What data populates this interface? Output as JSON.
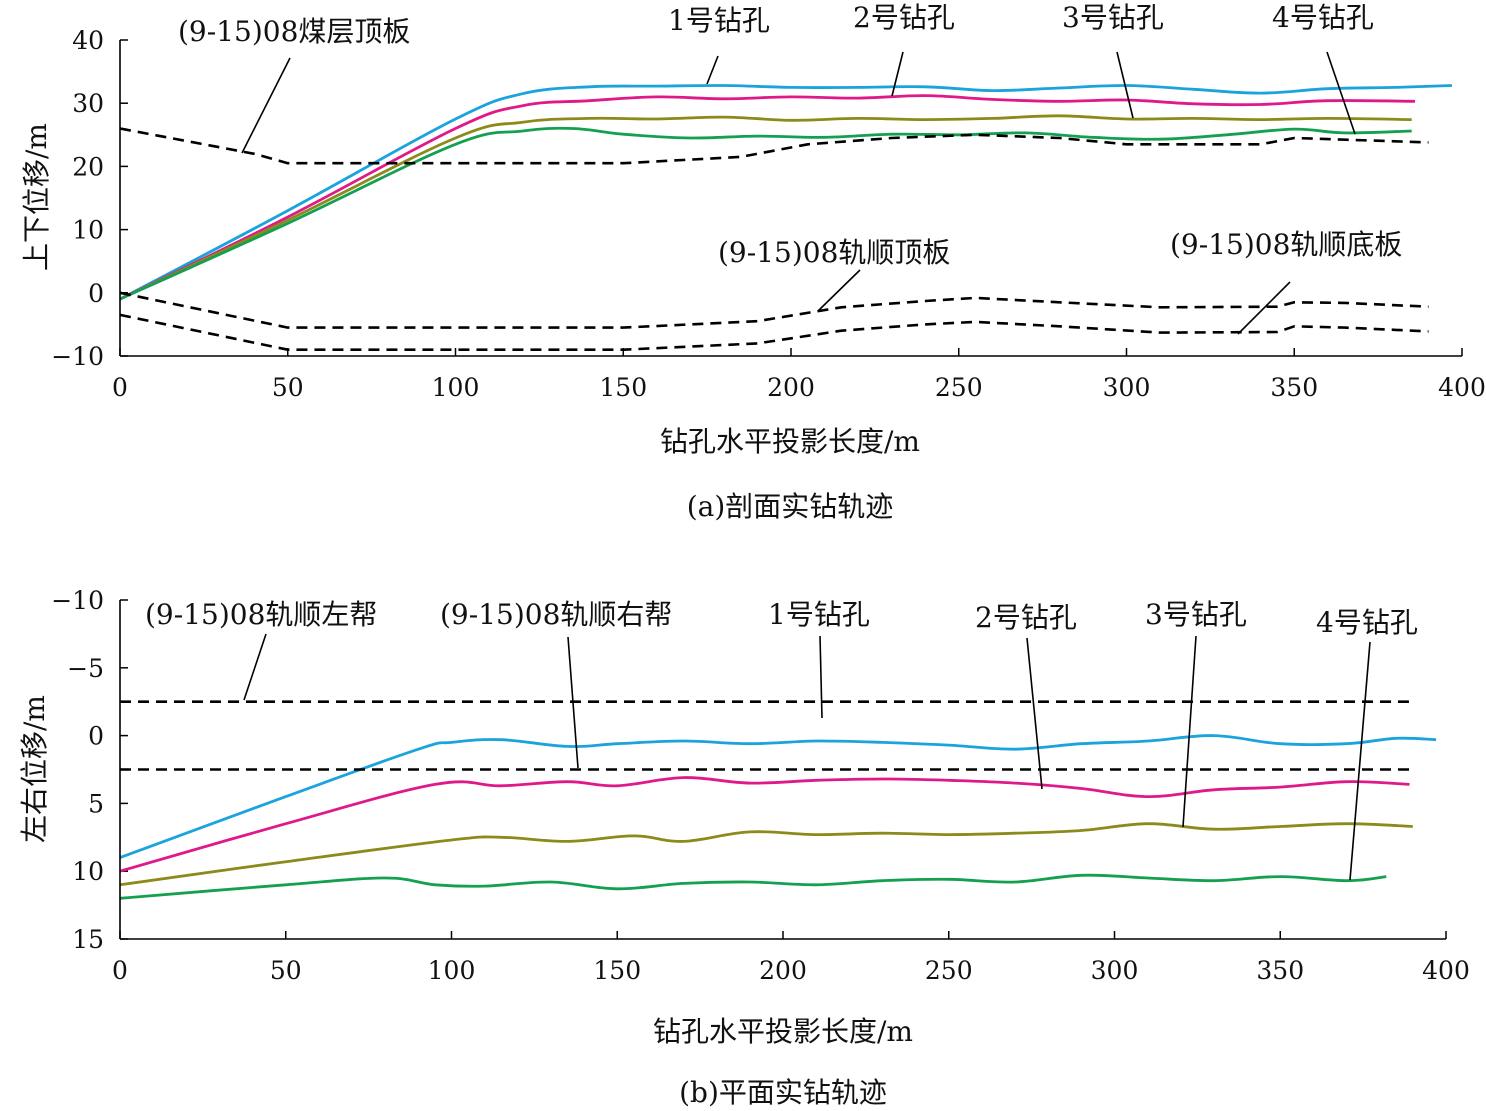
{
  "chart_data": [
    {
      "type": "line",
      "caption": "(a)剖面实钻轨迹",
      "xlabel": "钻孔水平投影长度/m",
      "ylabel": "上下位移/m",
      "xlim": [
        0,
        400
      ],
      "ylim": [
        -10,
        40
      ],
      "xticks": [
        "0",
        "50",
        "100",
        "150",
        "200",
        "250",
        "300",
        "350",
        "400"
      ],
      "yticks": [
        "−10",
        "0",
        "10",
        "20",
        "30",
        "40"
      ],
      "xtick_values": [
        0,
        50,
        100,
        150,
        200,
        250,
        300,
        350,
        400
      ],
      "ytick_values": [
        -10,
        0,
        10,
        20,
        30,
        40
      ],
      "y_inverted": false,
      "series": [
        {
          "name": "1号钻孔",
          "color": "#1aa3dc",
          "style": "solid",
          "x": [
            0,
            50,
            100,
            120,
            140,
            160,
            180,
            200,
            220,
            240,
            260,
            280,
            300,
            320,
            340,
            360,
            380,
            397
          ],
          "y": [
            -1,
            13,
            27.5,
            31.5,
            32.6,
            32.7,
            32.8,
            32.5,
            32.5,
            32.6,
            32.0,
            32.4,
            32.8,
            32.2,
            31.6,
            32.3,
            32.5,
            32.8
          ]
        },
        {
          "name": "2号钻孔",
          "color": "#e0198a",
          "style": "solid",
          "x": [
            0,
            50,
            100,
            120,
            140,
            160,
            180,
            200,
            220,
            240,
            260,
            280,
            300,
            320,
            340,
            360,
            386
          ],
          "y": [
            -1,
            12,
            26,
            29.6,
            30.4,
            31.0,
            30.7,
            31.0,
            30.8,
            31.2,
            30.6,
            30.3,
            30.5,
            29.9,
            29.8,
            30.4,
            30.3
          ]
        },
        {
          "name": "3号钻孔",
          "color": "#8c8a1b",
          "style": "solid",
          "x": [
            0,
            50,
            100,
            120,
            140,
            160,
            180,
            200,
            220,
            240,
            260,
            280,
            300,
            320,
            340,
            360,
            385
          ],
          "y": [
            -1,
            11.5,
            24.5,
            27.0,
            27.6,
            27.5,
            27.8,
            27.3,
            27.6,
            27.4,
            27.6,
            28.0,
            27.5,
            27.6,
            27.4,
            27.6,
            27.4
          ]
        },
        {
          "name": "4号钻孔",
          "color": "#14a050",
          "style": "solid",
          "x": [
            0,
            50,
            100,
            120,
            135,
            150,
            170,
            190,
            210,
            230,
            250,
            270,
            290,
            310,
            330,
            350,
            365,
            385
          ],
          "y": [
            -1,
            11,
            23.5,
            25.6,
            26.0,
            25.1,
            24.5,
            24.8,
            24.6,
            25.1,
            25.0,
            25.3,
            24.6,
            24.3,
            25.0,
            25.9,
            25.3,
            25.6
          ]
        },
        {
          "name": "(9-15)08煤层顶板",
          "color": "#000000",
          "style": "dashed",
          "x": [
            0,
            40,
            50,
            100,
            150,
            185,
            205,
            230,
            255,
            280,
            300,
            340,
            350,
            390
          ],
          "y": [
            26,
            22,
            20.5,
            20.5,
            20.5,
            21.5,
            23.5,
            24.5,
            25.0,
            24.5,
            23.5,
            23.5,
            24.5,
            23.8
          ]
        },
        {
          "name": "(9-15)08轨顺顶板",
          "color": "#000000",
          "style": "dashed",
          "x": [
            0,
            50,
            100,
            150,
            190,
            215,
            240,
            255,
            280,
            310,
            345,
            350,
            365,
            390
          ],
          "y": [
            0,
            -5.5,
            -5.5,
            -5.5,
            -4.5,
            -2.3,
            -1.3,
            -0.8,
            -1.5,
            -2.3,
            -2.2,
            -1.5,
            -1.6,
            -2.2
          ]
        },
        {
          "name": "(9-15)08轨顺底板",
          "color": "#000000",
          "style": "dashed",
          "x": [
            0,
            50,
            100,
            150,
            190,
            215,
            240,
            255,
            280,
            310,
            345,
            350,
            365,
            390
          ],
          "y": [
            -3.5,
            -9,
            -9,
            -9,
            -8,
            -6,
            -5,
            -4.6,
            -5.3,
            -6.3,
            -6.2,
            -5.3,
            -5.5,
            -6.1
          ]
        }
      ],
      "annotations": [
        {
          "text": "(9-15)08煤层顶板"
        },
        {
          "text": "1号钻孔"
        },
        {
          "text": "2号钻孔"
        },
        {
          "text": "3号钻孔"
        },
        {
          "text": "4号钻孔"
        },
        {
          "text": "(9-15)08轨顺顶板"
        },
        {
          "text": "(9-15)08轨顺底板"
        }
      ]
    },
    {
      "type": "line",
      "caption": "(b)平面实钻轨迹",
      "xlabel": "钻孔水平投影长度/m",
      "ylabel": "左右位移/m",
      "xlim": [
        0,
        400
      ],
      "ylim": [
        -10,
        15
      ],
      "xticks": [
        "0",
        "50",
        "100",
        "150",
        "200",
        "250",
        "300",
        "350",
        "400"
      ],
      "yticks": [
        "−10",
        "−5",
        "0",
        "5",
        "10",
        "15"
      ],
      "xtick_values": [
        0,
        50,
        100,
        150,
        200,
        250,
        300,
        350,
        400
      ],
      "ytick_values": [
        -10,
        -5,
        0,
        5,
        10,
        15
      ],
      "y_inverted": true,
      "series": [
        {
          "name": "1号钻孔",
          "color": "#1aa3dc",
          "style": "solid",
          "x": [
            0,
            50,
            90,
            100,
            115,
            135,
            150,
            170,
            190,
            210,
            230,
            250,
            270,
            290,
            310,
            330,
            350,
            370,
            385,
            397
          ],
          "y": [
            9,
            4.5,
            1.0,
            0.5,
            0.3,
            0.8,
            0.6,
            0.4,
            0.6,
            0.4,
            0.5,
            0.7,
            1.0,
            0.6,
            0.4,
            0.0,
            0.6,
            0.6,
            0.2,
            0.3
          ]
        },
        {
          "name": "2号钻孔",
          "color": "#e0198a",
          "style": "solid",
          "x": [
            0,
            50,
            95,
            115,
            135,
            150,
            170,
            190,
            210,
            230,
            250,
            270,
            290,
            310,
            330,
            350,
            370,
            389
          ],
          "y": [
            10,
            6.5,
            3.6,
            3.7,
            3.4,
            3.7,
            3.1,
            3.5,
            3.3,
            3.2,
            3.3,
            3.5,
            3.9,
            4.5,
            4.0,
            3.8,
            3.4,
            3.6
          ]
        },
        {
          "name": "3号钻孔",
          "color": "#8c8a1b",
          "style": "solid",
          "x": [
            0,
            50,
            100,
            115,
            135,
            155,
            170,
            190,
            210,
            230,
            250,
            270,
            290,
            310,
            330,
            350,
            370,
            390
          ],
          "y": [
            11,
            9.3,
            7.7,
            7.5,
            7.8,
            7.4,
            7.8,
            7.1,
            7.3,
            7.2,
            7.3,
            7.2,
            7.0,
            6.5,
            6.9,
            6.7,
            6.5,
            6.7
          ]
        },
        {
          "name": "4号钻孔",
          "color": "#14a050",
          "style": "solid",
          "x": [
            0,
            50,
            80,
            95,
            110,
            130,
            150,
            170,
            190,
            210,
            230,
            250,
            270,
            290,
            310,
            330,
            350,
            370,
            382
          ],
          "y": [
            12,
            11,
            10.5,
            11.0,
            11.1,
            10.8,
            11.3,
            10.9,
            10.8,
            11.0,
            10.7,
            10.6,
            10.8,
            10.3,
            10.5,
            10.7,
            10.4,
            10.7,
            10.4
          ]
        },
        {
          "name": "(9-15)08轨顺左帮",
          "color": "#000000",
          "style": "dashed",
          "x": [
            0,
            390
          ],
          "y": [
            -2.5,
            -2.5
          ]
        },
        {
          "name": "(9-15)08轨顺右帮",
          "color": "#000000",
          "style": "dashed",
          "x": [
            0,
            390
          ],
          "y": [
            2.5,
            2.5
          ]
        }
      ],
      "annotations": [
        {
          "text": "(9-15)08轨顺左帮"
        },
        {
          "text": "(9-15)08轨顺右帮"
        },
        {
          "text": "1号钻孔"
        },
        {
          "text": "2号钻孔"
        },
        {
          "text": "3号钻孔"
        },
        {
          "text": "4号钻孔"
        }
      ]
    }
  ]
}
